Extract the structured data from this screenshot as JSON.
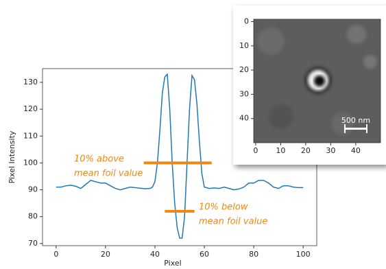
{
  "chart_data": [
    {
      "type": "line",
      "xlabel": "Pixel",
      "ylabel": "Pixel Intensity",
      "x": [
        0,
        2,
        4,
        6,
        8,
        10,
        12,
        14,
        16,
        18,
        20,
        22,
        24,
        26,
        28,
        30,
        32,
        34,
        36,
        38,
        39,
        40,
        41,
        42,
        43,
        44,
        45,
        46,
        47,
        48,
        49,
        50,
        51,
        52,
        53,
        54,
        55,
        56,
        57,
        58,
        59,
        60,
        62,
        64,
        66,
        68,
        70,
        72,
        74,
        76,
        78,
        80,
        82,
        84,
        86,
        88,
        90,
        92,
        94,
        96,
        98,
        100
      ],
      "series": [
        {
          "color": "#1f77b4",
          "values": [
            91,
            91,
            91.5,
            91.7,
            91.3,
            90.5,
            92,
            93.5,
            93,
            92.5,
            92.5,
            91.5,
            90.5,
            90,
            90.5,
            91,
            90.8,
            90.6,
            90.4,
            90.5,
            91,
            93,
            100,
            112,
            126,
            132,
            133,
            120,
            100,
            85,
            76,
            72,
            72,
            80,
            100,
            120,
            132.5,
            131,
            122,
            108,
            96,
            91,
            90.5,
            90.7,
            90.5,
            91,
            90.5,
            90,
            90.3,
            91,
            92.5,
            92.5,
            93.5,
            93.5,
            92.5,
            91,
            90.5,
            91.5,
            91.5,
            91,
            90.8,
            90.8
          ]
        }
      ],
      "xlim": [
        -5.5,
        105.5
      ],
      "ylim": [
        69.2,
        135.1
      ],
      "xticks": [
        0,
        20,
        40,
        60,
        80,
        100
      ],
      "yticks": [
        70,
        80,
        90,
        100,
        110,
        120,
        130
      ],
      "annotations": [
        {
          "text": [
            "10% above",
            "mean foil value"
          ],
          "y": 100,
          "x": [
            35.5,
            63
          ],
          "color": "#f0880f"
        },
        {
          "text": [
            "10% below",
            "mean foil value"
          ],
          "y": 82,
          "x": [
            44,
            56
          ],
          "color": "#f0880f"
        }
      ]
    },
    {
      "type": "image",
      "xlim": [
        -0.8,
        49.9
      ],
      "ylim": [
        50,
        -1
      ],
      "xticks": [
        0,
        10,
        20,
        30,
        40
      ],
      "yticks": [
        0,
        10,
        20,
        30,
        40
      ],
      "scale_bar_label": "500 nm"
    }
  ]
}
